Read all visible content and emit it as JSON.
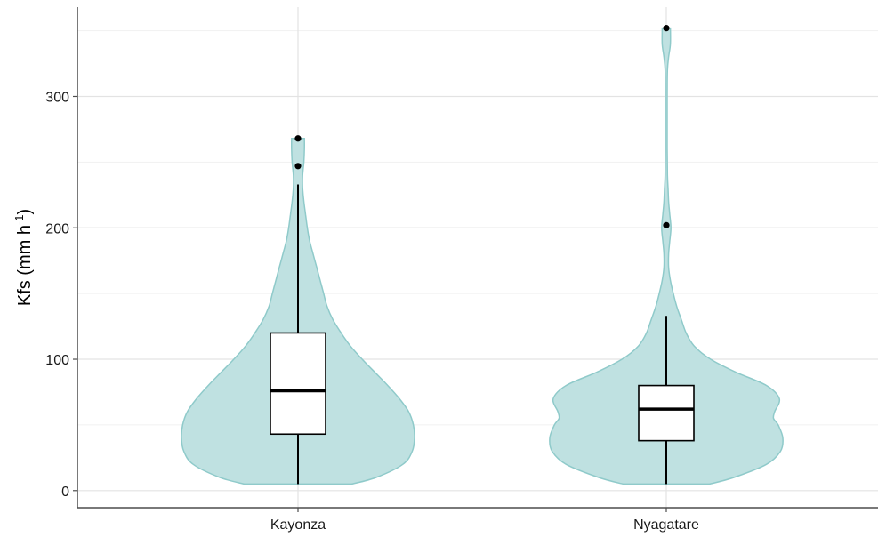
{
  "chart_data": {
    "type": "violin",
    "ylabel_main": "Kfs (mm h",
    "ylabel_sup": "-1",
    "ylabel_close": ")",
    "ylim": [
      -13,
      368
    ],
    "y_ticks": [
      0,
      100,
      200,
      300
    ],
    "y_tick_labels": [
      "0",
      "100",
      "200",
      "300"
    ],
    "categories": [
      "Kayonza",
      "Nyagatare"
    ],
    "grid": true,
    "colors": {
      "violin_fill": "#bfe1e1",
      "violin_stroke": "#8fcaca",
      "box_fill": "#ffffff",
      "box_stroke": "#000000",
      "outlier": "#000000",
      "grid_major": "#e3e3e3",
      "grid_minor": "#f1f1f1",
      "axis": "#4d4d4d"
    },
    "series": [
      {
        "category": "Kayonza",
        "box": {
          "q1": 43,
          "median": 76,
          "q3": 120,
          "whisker_low": 5,
          "whisker_high": 233
        },
        "outliers": [
          247,
          268
        ],
        "violin_profile": [
          [
            5,
            0.46
          ],
          [
            10,
            0.67
          ],
          [
            20,
            0.9
          ],
          [
            30,
            0.98
          ],
          [
            40,
            1.0
          ],
          [
            50,
            0.99
          ],
          [
            60,
            0.95
          ],
          [
            70,
            0.87
          ],
          [
            80,
            0.77
          ],
          [
            90,
            0.66
          ],
          [
            100,
            0.55
          ],
          [
            110,
            0.45
          ],
          [
            120,
            0.37
          ],
          [
            130,
            0.3
          ],
          [
            140,
            0.25
          ],
          [
            150,
            0.22
          ],
          [
            160,
            0.19
          ],
          [
            170,
            0.16
          ],
          [
            180,
            0.13
          ],
          [
            190,
            0.1
          ],
          [
            200,
            0.08
          ],
          [
            210,
            0.065
          ],
          [
            220,
            0.05
          ],
          [
            230,
            0.04
          ],
          [
            240,
            0.04
          ],
          [
            250,
            0.05
          ],
          [
            260,
            0.055
          ],
          [
            268,
            0.055
          ]
        ]
      },
      {
        "category": "Nyagatare",
        "box": {
          "q1": 38,
          "median": 62,
          "q3": 80,
          "whisker_low": 5,
          "whisker_high": 133
        },
        "outliers": [
          202,
          352
        ],
        "violin_profile": [
          [
            5,
            0.37
          ],
          [
            10,
            0.58
          ],
          [
            20,
            0.86
          ],
          [
            30,
            0.98
          ],
          [
            40,
            1.0
          ],
          [
            50,
            0.96
          ],
          [
            55,
            0.92
          ],
          [
            60,
            0.93
          ],
          [
            70,
            0.97
          ],
          [
            80,
            0.86
          ],
          [
            90,
            0.6
          ],
          [
            100,
            0.38
          ],
          [
            110,
            0.24
          ],
          [
            120,
            0.17
          ],
          [
            130,
            0.13
          ],
          [
            140,
            0.09
          ],
          [
            150,
            0.06
          ],
          [
            160,
            0.035
          ],
          [
            170,
            0.02
          ],
          [
            180,
            0.02
          ],
          [
            190,
            0.03
          ],
          [
            200,
            0.04
          ],
          [
            210,
            0.03
          ],
          [
            220,
            0.02
          ],
          [
            230,
            0.015
          ],
          [
            240,
            0.01
          ],
          [
            260,
            0.008
          ],
          [
            300,
            0.008
          ],
          [
            320,
            0.01
          ],
          [
            330,
            0.02
          ],
          [
            340,
            0.035
          ],
          [
            352,
            0.035
          ]
        ]
      }
    ]
  }
}
